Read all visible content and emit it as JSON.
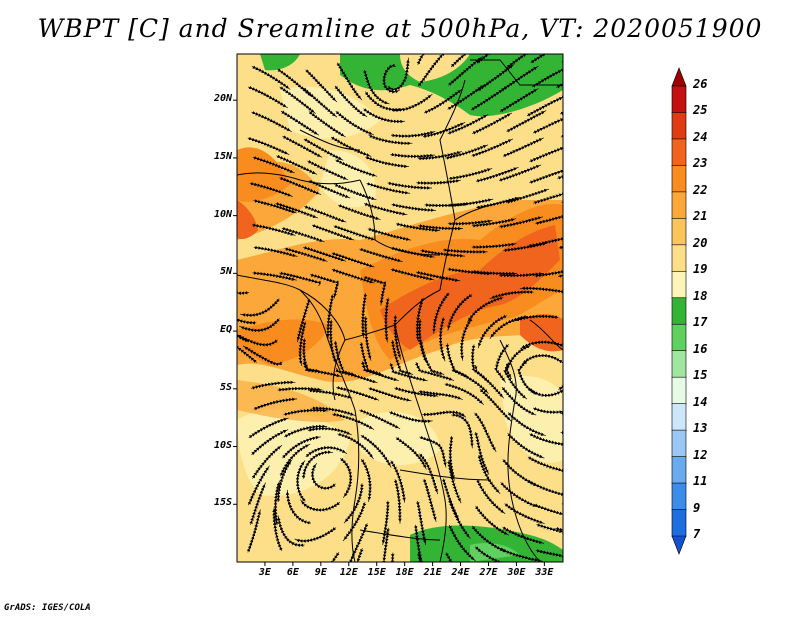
{
  "title": "WBPT [C] and Sreamline at 500hPa, VT: 2020051900",
  "credit": "GrADS: IGES/COLA",
  "map": {
    "lon_range": [
      0,
      35
    ],
    "lat_range": [
      -20,
      24
    ],
    "y_ticks": [
      {
        "label": "20N",
        "lat": 20
      },
      {
        "label": "15N",
        "lat": 15
      },
      {
        "label": "10N",
        "lat": 10
      },
      {
        "label": "5N",
        "lat": 5
      },
      {
        "label": "EQ",
        "lat": 0
      },
      {
        "label": "5S",
        "lat": -5
      },
      {
        "label": "10S",
        "lat": -10
      },
      {
        "label": "15S",
        "lat": -15
      }
    ],
    "x_ticks": [
      {
        "label": "3E",
        "lon": 3
      },
      {
        "label": "6E",
        "lon": 6
      },
      {
        "label": "9E",
        "lon": 9
      },
      {
        "label": "12E",
        "lon": 12
      },
      {
        "label": "15E",
        "lon": 15
      },
      {
        "label": "18E",
        "lon": 18
      },
      {
        "label": "21E",
        "lon": 21
      },
      {
        "label": "24E",
        "lon": 24
      },
      {
        "label": "27E",
        "lon": 27
      },
      {
        "label": "30E",
        "lon": 30
      },
      {
        "label": "33E",
        "lon": 33
      }
    ]
  },
  "colorbar": {
    "levels": [
      "26",
      "25",
      "24",
      "23",
      "22",
      "21",
      "20",
      "19",
      "18",
      "17",
      "16",
      "15",
      "14",
      "13",
      "12",
      "11",
      "9",
      "7"
    ],
    "colors": [
      "#a00000",
      "#c41010",
      "#e03c14",
      "#f0641e",
      "#f88c1e",
      "#fca73a",
      "#fcc45a",
      "#fcdf88",
      "#fcf4b8",
      "#34b434",
      "#60d060",
      "#a0e6a0",
      "#e6fae6",
      "#cce6fa",
      "#9ac8f2",
      "#6aaaee",
      "#3c8cea",
      "#1e6ee0",
      "#1450d2"
    ]
  }
}
